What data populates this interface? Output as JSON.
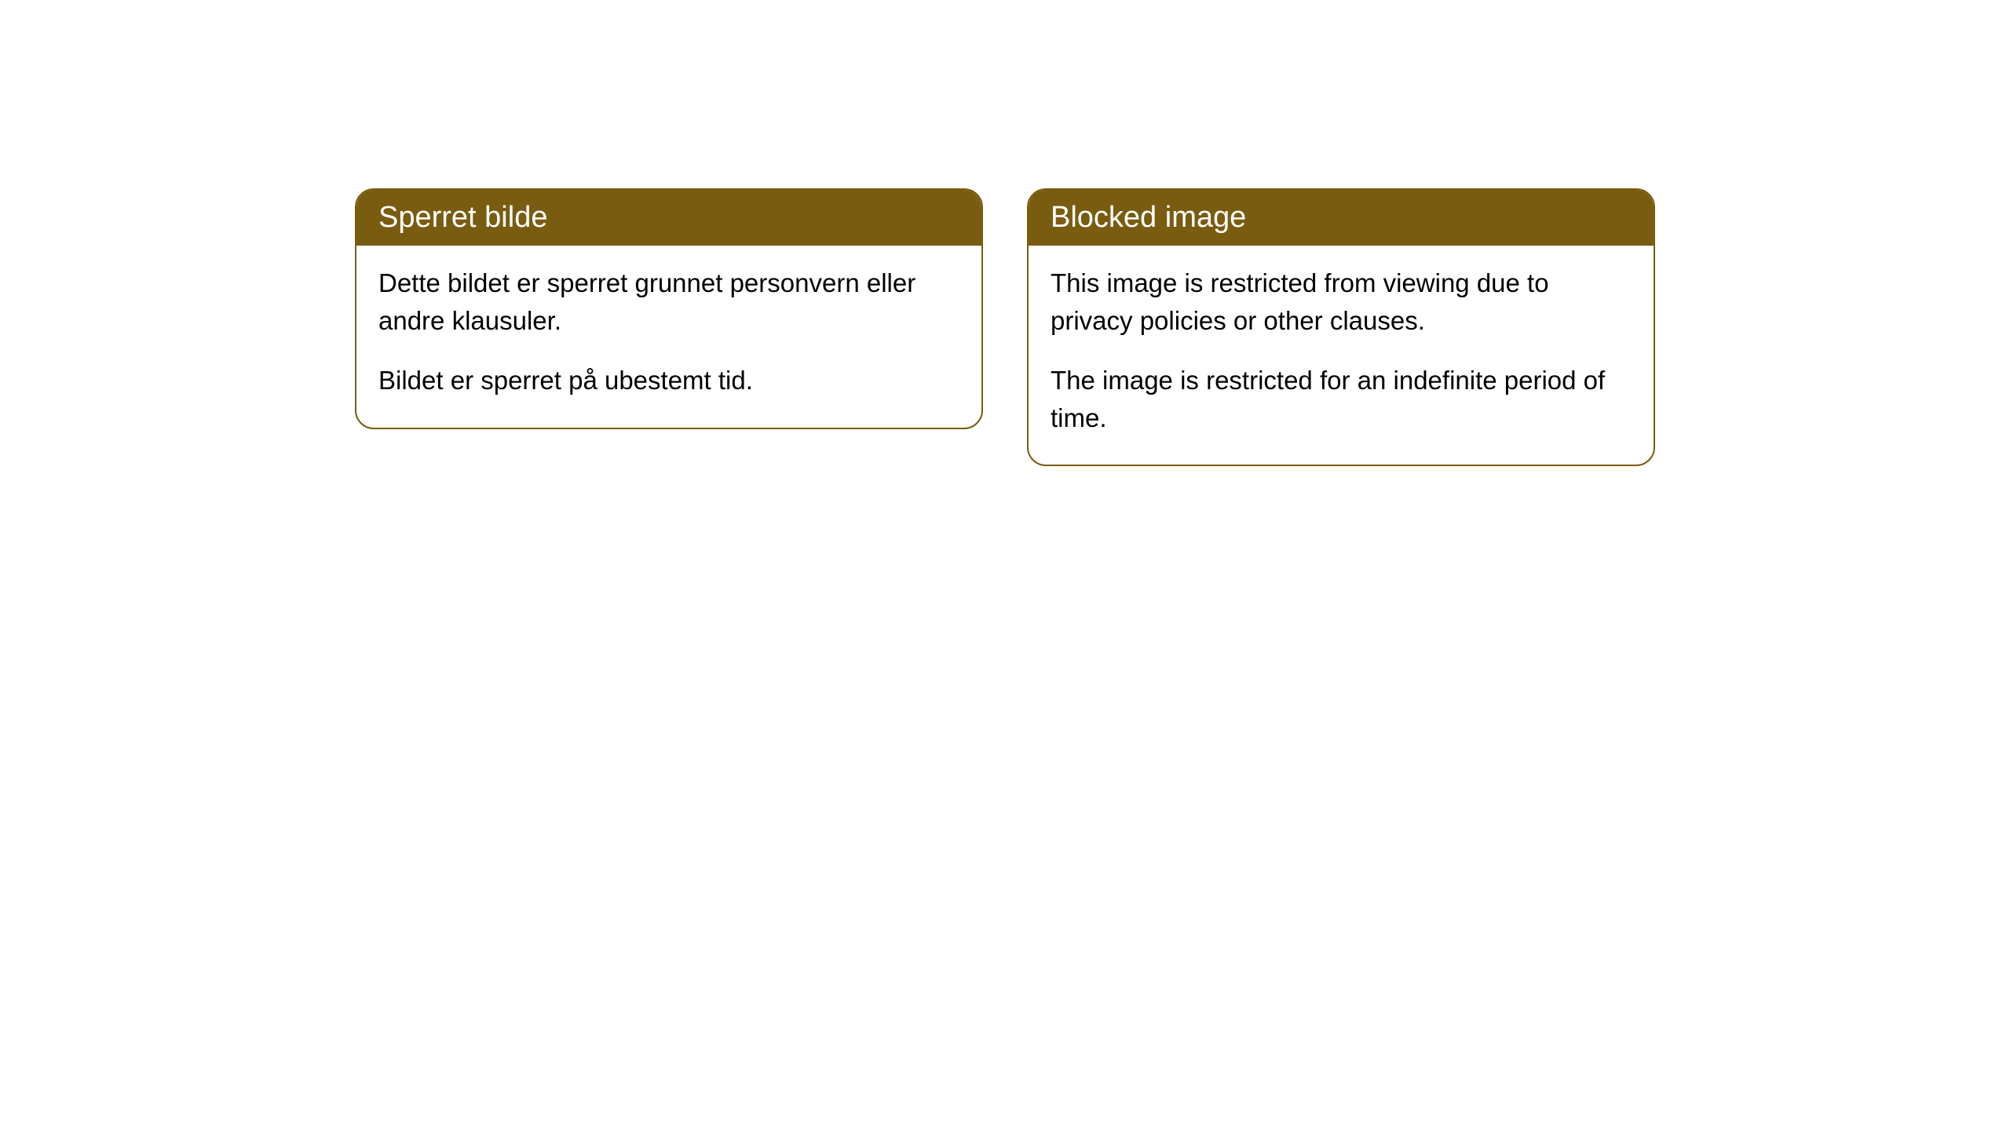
{
  "cards": [
    {
      "title": "Sperret bilde",
      "paragraph1": "Dette bildet er sperret grunnet personvern eller andre klausuler.",
      "paragraph2": "Bildet er sperret på ubestemt tid."
    },
    {
      "title": "Blocked image",
      "paragraph1": "This image is restricted from viewing due to privacy policies or other clauses.",
      "paragraph2": "The image is restricted for an indefinite period of time."
    }
  ],
  "style": {
    "header_bg_color": "#7a5c10",
    "header_text_color": "#ffffff",
    "body_bg_color": "#ffffff",
    "body_text_color": "#000000",
    "border_color": "#7a5c10",
    "border_radius": 24,
    "header_fontsize": 38,
    "body_fontsize": 33
  }
}
